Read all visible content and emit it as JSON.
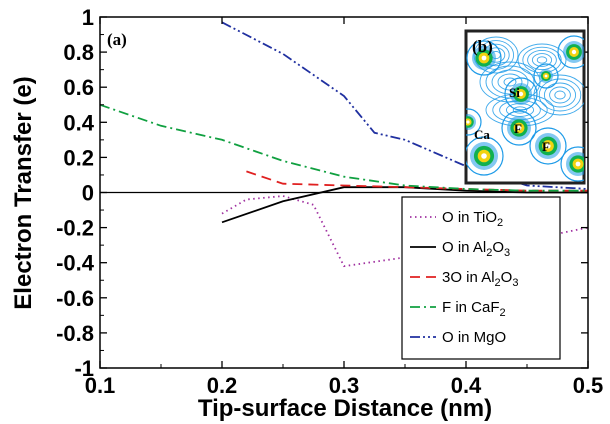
{
  "chart_data": {
    "type": "line",
    "xlabel": "Tip-surface Distance (nm)",
    "ylabel": "Electron Transfer (e)",
    "xlim": [
      0.1,
      0.5
    ],
    "ylim": [
      -1,
      1
    ],
    "xticks": [
      "0.1",
      "0.2",
      "0.3",
      "0.4",
      "0.5"
    ],
    "yticks": [
      "-1",
      "-0.8",
      "-0.6",
      "-0.4",
      "-0.2",
      "0",
      "0.2",
      "0.4",
      "0.6",
      "0.8",
      "1"
    ],
    "panel_label": "(a)",
    "grid": false,
    "legend_position": "lower-right",
    "series": [
      {
        "name": "O in TiO2",
        "name_base": "O in TiO",
        "name_sub": "2",
        "color": "#a030a0",
        "dash": "1.5,3.5",
        "x": [
          0.2,
          0.22,
          0.25,
          0.275,
          0.3,
          0.35,
          0.4,
          0.45,
          0.5
        ],
        "y": [
          -0.12,
          -0.04,
          -0.02,
          -0.07,
          -0.42,
          -0.37,
          -0.32,
          -0.27,
          -0.2
        ]
      },
      {
        "name": "O in Al2O3",
        "name_base": "O in Al",
        "name_sub": "2",
        "name_mid": "O",
        "name_sub2": "3",
        "color": "#000000",
        "dash": "",
        "x": [
          0.2,
          0.25,
          0.3,
          0.35,
          0.4,
          0.45,
          0.5
        ],
        "y": [
          -0.17,
          -0.05,
          0.03,
          0.03,
          0.01,
          0.0,
          0.0
        ]
      },
      {
        "name": "3O in Al2O3",
        "name_base": "3O in Al",
        "name_sub": "2",
        "name_mid": "O",
        "name_sub2": "3",
        "color": "#e02020",
        "dash": "10,6",
        "x": [
          0.22,
          0.25,
          0.3,
          0.35,
          0.4,
          0.45,
          0.5
        ],
        "y": [
          0.12,
          0.05,
          0.04,
          0.03,
          0.02,
          0.01,
          0.01
        ]
      },
      {
        "name": "F in CaF2",
        "name_base": "F in CaF",
        "name_sub": "2",
        "color": "#10a040",
        "dash": "10,4,2,4",
        "x": [
          0.1,
          0.15,
          0.2,
          0.25,
          0.3,
          0.35,
          0.4,
          0.45,
          0.5
        ],
        "y": [
          0.5,
          0.38,
          0.3,
          0.18,
          0.09,
          0.04,
          0.02,
          0.01,
          0.01
        ]
      },
      {
        "name": "O in MgO",
        "name_base": "O in MgO",
        "name_sub": "",
        "color": "#2030a0",
        "dash": "10,3,2,3,2,3",
        "x": [
          0.2,
          0.25,
          0.3,
          0.325,
          0.35,
          0.4,
          0.45,
          0.5
        ],
        "y": [
          0.97,
          0.79,
          0.55,
          0.34,
          0.3,
          0.15,
          0.04,
          0.02
        ]
      }
    ],
    "inset": {
      "panel_label": "(b)",
      "labels": [
        "Si",
        "Ca",
        "F",
        "F"
      ],
      "colors": {
        "background": "#ffffff",
        "contour": "#1e9be8",
        "ring": "#f2d310",
        "core": "#10b050",
        "frame": "#222222"
      }
    }
  }
}
